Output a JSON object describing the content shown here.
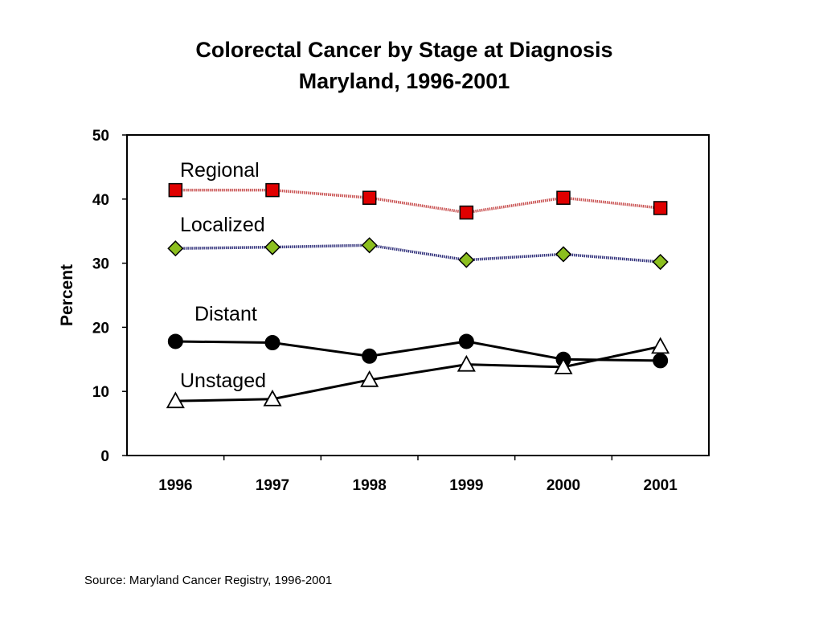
{
  "chart_data": {
    "type": "line",
    "title": "Colorectal Cancer by Stage at Diagnosis",
    "subtitle": "Maryland, 1996-2001",
    "xlabel": "",
    "ylabel": "Percent",
    "categories": [
      "1996",
      "1997",
      "1998",
      "1999",
      "2000",
      "2001"
    ],
    "ylim": [
      0,
      50
    ],
    "yticks": [
      "0",
      "10",
      "20",
      "30",
      "40",
      "50"
    ],
    "grid": false,
    "series": [
      {
        "name": "Regional",
        "values": [
          41.4,
          41.4,
          40.2,
          37.9,
          40.2,
          38.6
        ],
        "marker": "square",
        "color": "#e00000",
        "line_color": "#c85050"
      },
      {
        "name": "Localized",
        "values": [
          32.3,
          32.5,
          32.8,
          30.5,
          31.4,
          30.2
        ],
        "marker": "diamond",
        "color": "#8cbf1f",
        "line_color": "#30307a"
      },
      {
        "name": "Distant",
        "values": [
          17.8,
          17.6,
          15.5,
          17.8,
          15.0,
          14.8
        ],
        "marker": "circle",
        "color": "#000000",
        "line_color": "#000000"
      },
      {
        "name": "Unstaged",
        "values": [
          8.5,
          8.8,
          11.8,
          14.2,
          13.8,
          17.0
        ],
        "marker": "triangle",
        "color": "#ffffff",
        "line_color": "#000000"
      }
    ]
  },
  "footer": {
    "source": "Source: Maryland Cancer Registry, 1996-2001"
  }
}
